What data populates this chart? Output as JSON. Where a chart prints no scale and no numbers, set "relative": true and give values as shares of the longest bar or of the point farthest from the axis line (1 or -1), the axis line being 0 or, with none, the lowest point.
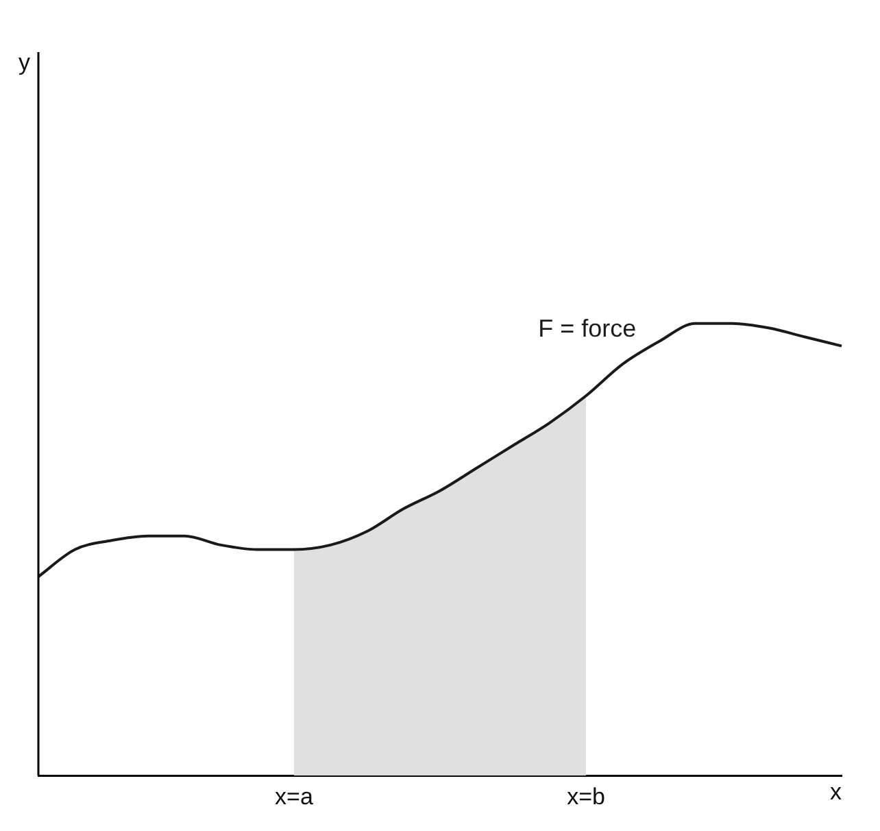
{
  "chart_data": {
    "type": "line",
    "relative": true,
    "xlabel": "x",
    "annotations": [
      "y"
    ],
    "legend": false,
    "grid": false,
    "marker": "none",
    "line_style": "solid",
    "categories": [
      null,
      null,
      null,
      null,
      null,
      null,
      null,
      "x=a",
      null,
      null,
      null,
      null,
      null,
      null,
      null,
      "x=b",
      null,
      null,
      null,
      null,
      null,
      null,
      null
    ],
    "series": [
      {
        "name": "F = force",
        "color": "#1a1a1a",
        "values": [
          0.44,
          0.5,
          0.52,
          0.53,
          0.53,
          0.51,
          0.5,
          0.5,
          0.51,
          0.54,
          0.59,
          0.63,
          0.68,
          0.73,
          0.78,
          0.84,
          0.91,
          0.96,
          1,
          1,
          0.99,
          0.97,
          0.95
        ]
      },
      {
        "type": "area",
        "color": "#e0e0e0",
        "values": [
          null,
          null,
          null,
          null,
          null,
          null,
          null,
          0.5,
          0.51,
          0.54,
          0.59,
          0.63,
          0.68,
          0.73,
          0.78,
          0.84,
          null,
          null,
          null,
          null,
          null,
          null,
          null
        ]
      }
    ]
  }
}
